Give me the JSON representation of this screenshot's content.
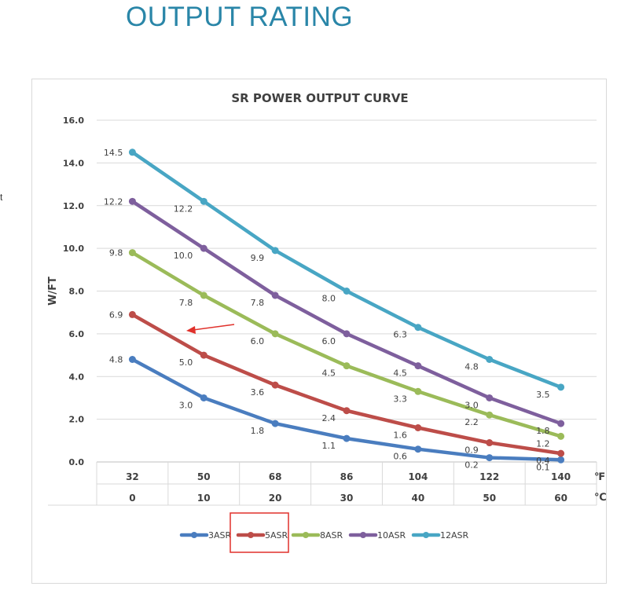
{
  "page": {
    "title": "OUTPUT RATING",
    "side_text": "t"
  },
  "colors": {
    "3ASR": "#4a7dbf",
    "5ASR": "#bd4d49",
    "8ASR": "#9bbb59",
    "10ASR": "#7e5f9d",
    "12ASR": "#48a6c4",
    "highlight": "#e0312b",
    "title": "#2a86a8"
  },
  "chart_data": {
    "type": "line",
    "title": "SR POWER OUTPUT CURVE",
    "ylabel": "W/FT",
    "xlabel": "",
    "ylim": [
      0,
      16
    ],
    "yticks": [
      "0.0",
      "2.0",
      "4.0",
      "6.0",
      "8.0",
      "10.0",
      "12.0",
      "14.0",
      "16.0"
    ],
    "categories_f": [
      "32",
      "50",
      "68",
      "86",
      "104",
      "122",
      "140"
    ],
    "categories_c": [
      "0",
      "10",
      "20",
      "30",
      "40",
      "50",
      "60"
    ],
    "unit_f": "℉",
    "unit_c": "℃",
    "grid": true,
    "legend_position": "bottom",
    "highlighted_legend": "5ASR",
    "series": [
      {
        "name": "3ASR",
        "values": [
          4.8,
          3.0,
          1.8,
          1.1,
          0.6,
          0.2,
          0.1
        ],
        "labels": [
          "4.8",
          "3.0",
          "1.8",
          "1.1",
          "0.6",
          "0.2",
          "0.1"
        ]
      },
      {
        "name": "5ASR",
        "values": [
          6.9,
          5.0,
          3.6,
          2.4,
          1.6,
          0.9,
          0.4
        ],
        "labels": [
          "6.9",
          "5.0",
          "3.6",
          "2.4",
          "1.6",
          "0.9",
          "0.4"
        ]
      },
      {
        "name": "8ASR",
        "values": [
          9.8,
          7.8,
          6.0,
          4.5,
          3.3,
          2.2,
          1.2
        ],
        "labels": [
          "9.8",
          "7.8",
          "6.0",
          "4.5",
          "3.3",
          "2.2",
          "1.2"
        ]
      },
      {
        "name": "10ASR",
        "values": [
          12.2,
          10.0,
          7.8,
          6.0,
          4.5,
          3.0,
          1.8
        ],
        "labels": [
          "12.2",
          "10.0",
          "7.8",
          "6.0",
          "4.5",
          "3.0",
          "1.8"
        ]
      },
      {
        "name": "12ASR",
        "values": [
          14.5,
          12.2,
          9.9,
          8.0,
          6.3,
          4.8,
          3.5
        ],
        "labels": [
          "14.5",
          "12.2",
          "9.9",
          "8.0",
          "6.3",
          "4.8",
          "3.5"
        ]
      }
    ]
  }
}
